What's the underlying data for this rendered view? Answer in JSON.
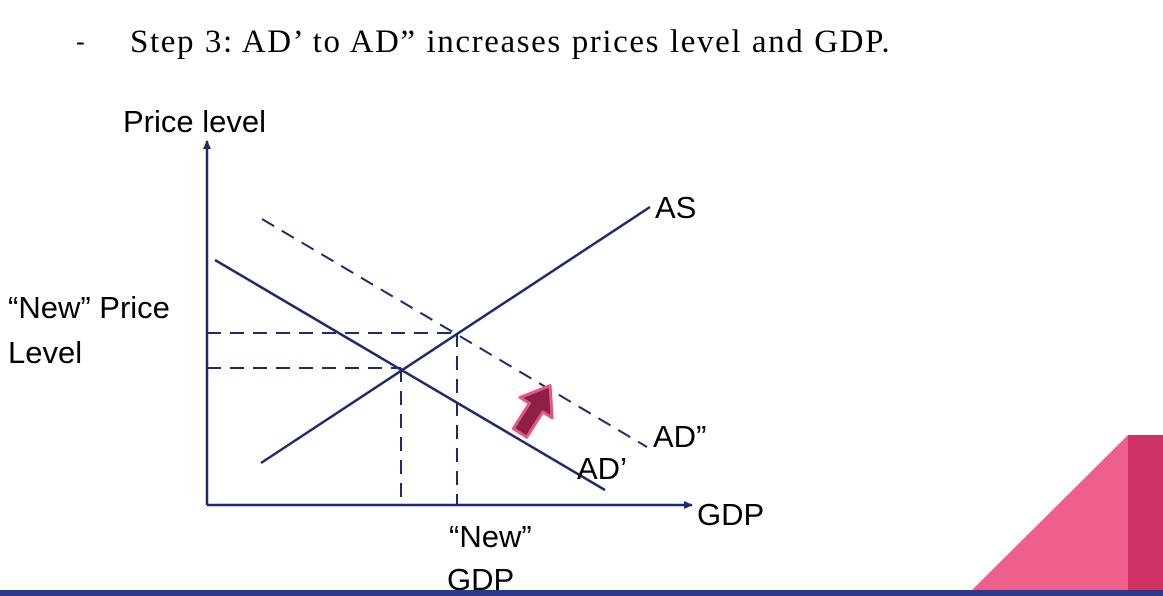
{
  "bullet": {
    "marker": "-",
    "text": "Step 3: AD’ to AD” increases prices level and GDP."
  },
  "diagram": {
    "y_axis_label": "Price level",
    "x_axis_label": "GDP",
    "curves": {
      "as": "AS",
      "ad_prime": "AD’",
      "ad_double_prime": "AD”"
    },
    "new_price_label": [
      "“New” Price",
      "Level"
    ],
    "new_gdp_label": [
      "“New”",
      "GDP"
    ]
  },
  "colors": {
    "line": "#1f2a6e",
    "arrow": "#8e1f47",
    "arrow_outline": "#e4587f",
    "accent_light": "#ef5f8c",
    "accent_dark": "#cf3264",
    "bottom_bar": "#2b3a8c"
  }
}
